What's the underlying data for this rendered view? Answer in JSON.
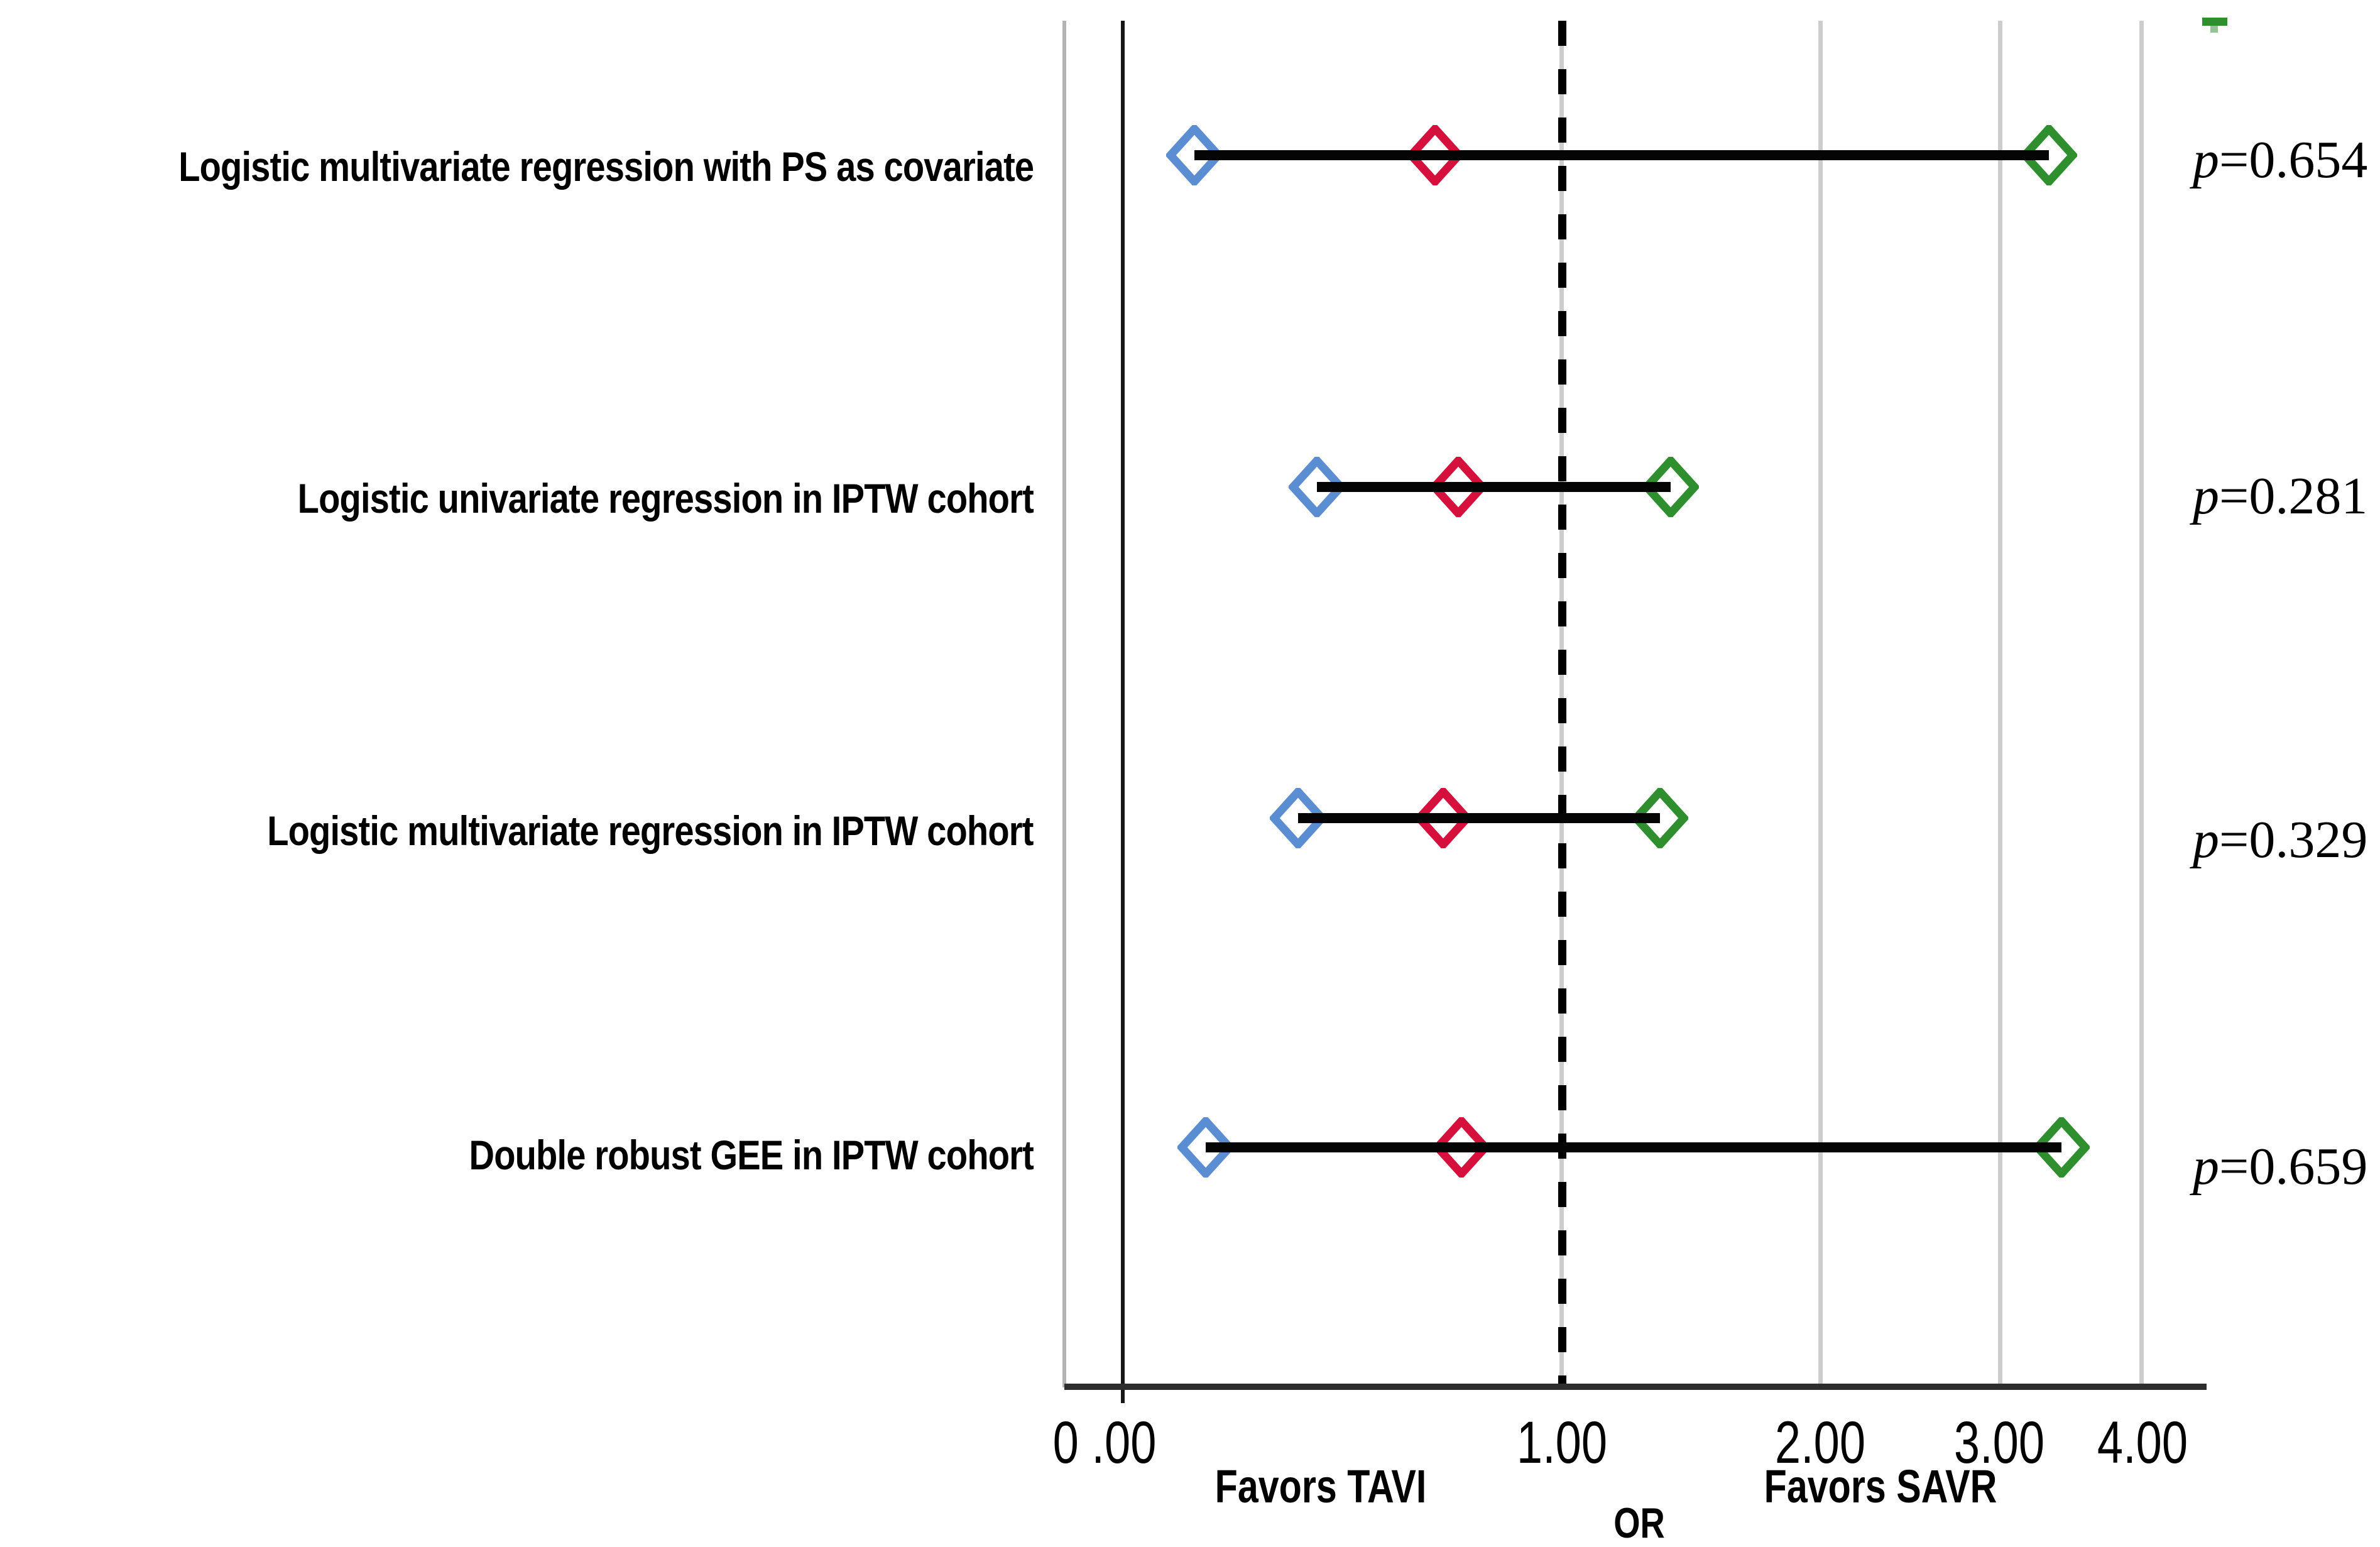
{
  "figure": {
    "p_symbol": "p",
    "axis": {
      "ticks": [
        "0 .00",
        "1.00",
        "2.00",
        "3.00",
        "4.00"
      ],
      "xlabel": "OR",
      "favors_left": "Favors TAVI",
      "favors_right": "Favors SAVR"
    },
    "rows": [
      {
        "label": "Logistic multivariate regression with PS as covariate",
        "p_text": "=0.654"
      },
      {
        "label": "Logistic univariate regression in IPTW cohort",
        "p_text": "=0.281"
      },
      {
        "label": "Logistic multivariate regression in IPTW cohort",
        "p_text": "=0.329"
      },
      {
        "label": "Double robust GEE in IPTW cohort",
        "p_text": "=0.659"
      }
    ],
    "colors": {
      "lower_ci": "#5B8DD3",
      "estimate": "#D6103C",
      "upper_ci": "#2F8F2F",
      "grid": "#cdcdcd",
      "axis_line": "#2e2e2e",
      "zero_line": "#161616",
      "dashed_ref": "#000000",
      "ci_bar": "#050505"
    }
  },
  "chart_data": {
    "type": "scatter",
    "subtype": "forest-plot",
    "title": "",
    "xlabel": "OR",
    "x_ticks": [
      0.0,
      1.0,
      2.0,
      3.0,
      4.0
    ],
    "x_tick_labels": [
      "0 .00",
      "1.00",
      "2.00",
      "3.00",
      "4.00"
    ],
    "x_scale": "compressed (position proportional to ln(1+OR))",
    "reference_line_dashed": 1.0,
    "solid_line": 0.0,
    "grid": "vertical gridlines at ticks",
    "direction_labels": {
      "left_of_1": "Favors TAVI",
      "right_of_1": "Favors SAVR"
    },
    "legend_position": "none",
    "marker_meaning": {
      "blue_open_diamond": "lower 95% CI bound",
      "red_open_diamond": "OR point estimate",
      "green_open_diamond": "upper 95% CI bound"
    },
    "rows": [
      {
        "label": "Logistic multivariate regression with PS as covariate",
        "or": 0.64,
        "ci_low": 0.12,
        "ci_high": 3.33,
        "p": 0.654
      },
      {
        "label": "Logistic univariate regression in IPTW cohort",
        "or": 0.7,
        "ci_low": 0.36,
        "ci_high": 1.38,
        "p": 0.281
      },
      {
        "label": "Logistic multivariate regression in IPTW cohort",
        "or": 0.66,
        "ci_low": 0.32,
        "ci_high": 1.34,
        "p": 0.329
      },
      {
        "label": "Double robust GEE in IPTW cohort",
        "or": 0.71,
        "ci_low": 0.14,
        "ci_high": 3.42,
        "p": 0.659
      }
    ]
  }
}
